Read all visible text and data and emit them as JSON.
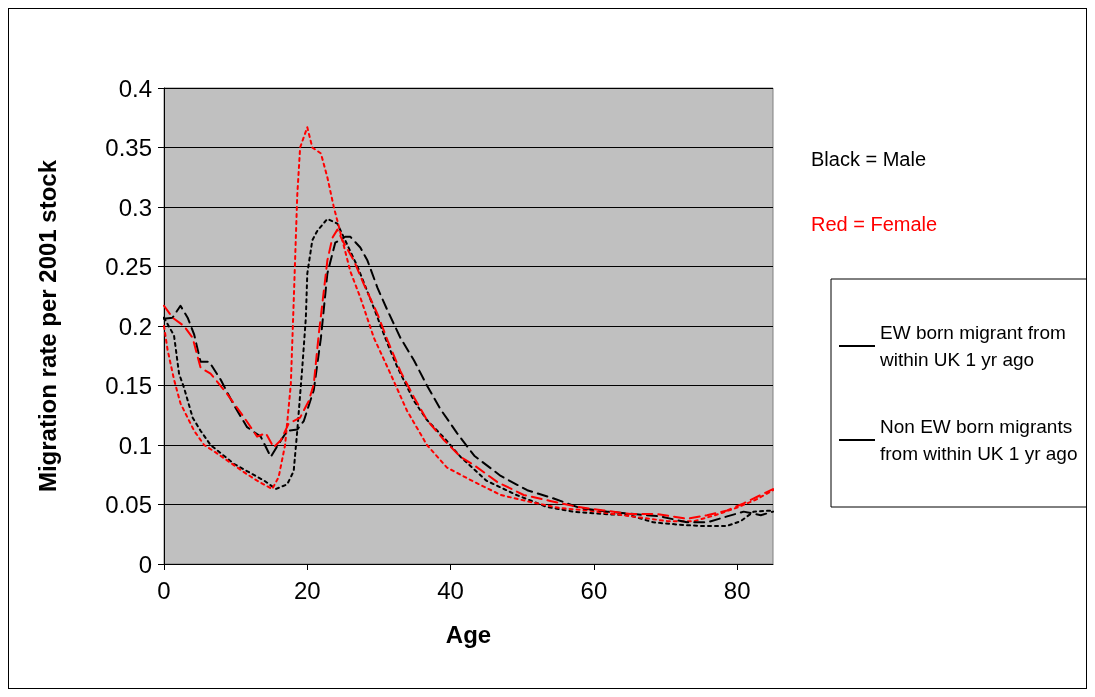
{
  "chart_data": {
    "type": "line",
    "xlabel": "Age",
    "ylabel": "Migration rate per 2001 stock",
    "xlim": [
      0,
      85
    ],
    "xticks": [
      0,
      20,
      40,
      60,
      80
    ],
    "ylim": [
      0,
      0.4
    ],
    "yticks": [
      0,
      0.05,
      0.1,
      0.15,
      0.2,
      0.25,
      0.3,
      0.35,
      0.4
    ],
    "grid": "y",
    "legend": "right",
    "marker": "none",
    "annotations": [
      "Black = Male",
      "Red = Female"
    ],
    "series": [
      {
        "name": "EW born migrant from within UK 1 yr ago",
        "color": "#000000",
        "line_style": "dotted",
        "x": [
          0,
          1.4,
          2.1,
          2.8,
          4,
          5.1,
          6.5,
          9.8,
          11.9,
          14,
          15.6,
          17.2,
          18.1,
          18.6,
          19.3,
          19.8,
          20,
          20.7,
          21.4,
          22.8,
          24.2,
          27,
          29.3,
          31.2,
          32.6,
          34.9,
          36.7,
          39.1,
          41.4,
          45,
          49.2,
          53.4,
          57.1,
          61.3,
          65,
          68.3,
          72,
          74.8,
          78.6,
          80.5,
          82.3,
          85
        ],
        "values": [
          0.207,
          0.192,
          0.16,
          0.148,
          0.123,
          0.112,
          0.1,
          0.084,
          0.077,
          0.07,
          0.063,
          0.067,
          0.078,
          0.112,
          0.165,
          0.207,
          0.244,
          0.272,
          0.28,
          0.29,
          0.286,
          0.25,
          0.215,
          0.185,
          0.165,
          0.137,
          0.121,
          0.106,
          0.09,
          0.07,
          0.058,
          0.048,
          0.044,
          0.042,
          0.041,
          0.035,
          0.033,
          0.032,
          0.032,
          0.036,
          0.044,
          0.045
        ]
      },
      {
        "color": "#ff0000",
        "line_style": "dotted",
        "x": [
          0,
          0.5,
          1.4,
          2.3,
          4.2,
          5.6,
          7.4,
          9.3,
          11.2,
          13,
          15.1,
          16,
          16.9,
          17.7,
          18.1,
          18.6,
          19,
          20,
          20.7,
          21.9,
          22.8,
          23.7,
          24.9,
          26,
          27.4,
          29.3,
          31.6,
          33.9,
          36.7,
          39.5,
          43.3,
          47,
          51.2,
          55.3,
          59.1,
          62.8,
          66.5,
          70.3,
          74,
          76.9,
          79.8,
          82.6,
          85
        ],
        "values": [
          0.2,
          0.18,
          0.155,
          0.135,
          0.112,
          0.1,
          0.093,
          0.085,
          0.077,
          0.07,
          0.063,
          0.073,
          0.1,
          0.151,
          0.22,
          0.31,
          0.35,
          0.367,
          0.35,
          0.345,
          0.325,
          0.3,
          0.272,
          0.246,
          0.224,
          0.19,
          0.16,
          0.129,
          0.1,
          0.081,
          0.069,
          0.058,
          0.052,
          0.047,
          0.045,
          0.042,
          0.039,
          0.036,
          0.036,
          0.041,
          0.047,
          0.054,
          0.062
        ]
      },
      {
        "name": "Non EW born migrants from within UK 1 yr ago",
        "color": "#000000",
        "line_style": "dashed",
        "x": [
          0,
          1.2,
          2.3,
          3.3,
          4.2,
          5.1,
          6.3,
          7.9,
          9.8,
          11.6,
          13.5,
          14.9,
          15.8,
          17.2,
          18.6,
          19.5,
          20.9,
          21.9,
          22.8,
          23.9,
          25.3,
          26,
          27.4,
          28.4,
          29.8,
          31.2,
          33,
          34.9,
          36.7,
          38.6,
          40.9,
          43.3,
          47,
          50.7,
          54.4,
          58.1,
          61.9,
          65.6,
          69.3,
          73,
          75.8,
          78.6,
          80.9,
          83.3,
          85
        ],
        "values": [
          0.206,
          0.207,
          0.217,
          0.207,
          0.193,
          0.17,
          0.17,
          0.155,
          0.133,
          0.115,
          0.107,
          0.09,
          0.099,
          0.112,
          0.113,
          0.12,
          0.146,
          0.19,
          0.244,
          0.27,
          0.275,
          0.275,
          0.266,
          0.255,
          0.232,
          0.213,
          0.19,
          0.171,
          0.15,
          0.13,
          0.11,
          0.091,
          0.074,
          0.062,
          0.055,
          0.047,
          0.044,
          0.042,
          0.04,
          0.035,
          0.035,
          0.04,
          0.044,
          0.041,
          0.044
        ]
      },
      {
        "color": "#ff0000",
        "line_style": "dashed",
        "x": [
          0,
          1.2,
          2.8,
          4,
          5.1,
          6.5,
          8.8,
          11.2,
          13,
          14.2,
          15.3,
          16.3,
          17.4,
          19,
          20.2,
          20.9,
          21.6,
          22.3,
          22.8,
          23.5,
          24.2,
          24.9,
          26.5,
          27.9,
          29.8,
          31.2,
          33,
          34.9,
          36.7,
          39.1,
          41.4,
          43.3,
          46.5,
          50.2,
          53.9,
          57.7,
          61.4,
          65.1,
          68.8,
          73,
          75.8,
          78.6,
          80.9,
          83.3,
          85
        ],
        "values": [
          0.217,
          0.207,
          0.2,
          0.19,
          0.165,
          0.16,
          0.143,
          0.123,
          0.107,
          0.11,
          0.098,
          0.104,
          0.118,
          0.123,
          0.137,
          0.151,
          0.193,
          0.229,
          0.255,
          0.274,
          0.281,
          0.272,
          0.255,
          0.235,
          0.21,
          0.188,
          0.162,
          0.14,
          0.121,
          0.104,
          0.09,
          0.083,
          0.069,
          0.058,
          0.053,
          0.048,
          0.045,
          0.042,
          0.042,
          0.038,
          0.041,
          0.045,
          0.051,
          0.058,
          0.063
        ]
      }
    ]
  }
}
